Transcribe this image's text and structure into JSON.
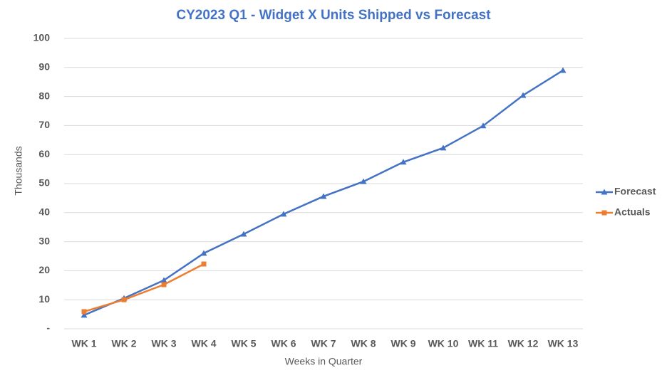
{
  "chart_data": {
    "type": "line",
    "title": "CY2023 Q1 - Widget X Units Shipped vs Forecast",
    "xlabel": "Weeks in Quarter",
    "ylabel": "Thousands",
    "categories": [
      "WK 1",
      "WK 2",
      "WK 3",
      "WK 4",
      "WK 5",
      "WK 6",
      "WK 7",
      "WK 8",
      "WK 9",
      "WK 10",
      "WK 11",
      "WK 12",
      "WK 13"
    ],
    "series": [
      {
        "name": "Forecast",
        "color": "#4472c4",
        "marker": "triangle",
        "values": [
          4.7,
          10.5,
          16.7,
          26,
          32.6,
          39.5,
          45.6,
          50.7,
          57.4,
          62.3,
          69.9,
          80.4,
          89
        ]
      },
      {
        "name": "Actuals",
        "color": "#ed7d31",
        "marker": "square",
        "values": [
          5.9,
          10,
          15.2,
          22.3,
          null,
          null,
          null,
          null,
          null,
          null,
          null,
          null,
          null
        ]
      }
    ],
    "ylim": [
      0,
      100
    ],
    "yticks": [
      {
        "value": 0,
        "label": "-"
      },
      10,
      20,
      30,
      40,
      50,
      60,
      70,
      80,
      90,
      100
    ],
    "grid": true,
    "legend": "right"
  }
}
